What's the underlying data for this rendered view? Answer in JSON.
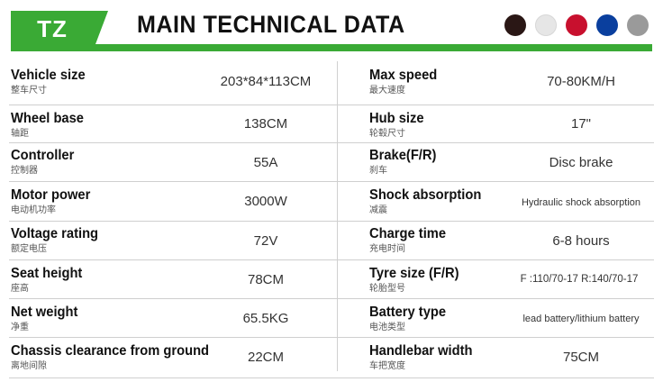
{
  "header": {
    "badge": "TZ",
    "title": "MAIN TECHNICAL DATA",
    "color_swatches": [
      "#2a1715",
      "#e6e6e6",
      "#c8102e",
      "#0a3f9e",
      "#9a9a9a"
    ],
    "accent_color": "#3aaa35"
  },
  "specs": [
    {
      "left": {
        "en": "Vehicle size",
        "cn": "整车尺寸",
        "value": "203*84*113CM"
      },
      "right": {
        "en": "Max speed",
        "cn": "最大速度",
        "value": "70-80KM/H"
      }
    },
    {
      "left": {
        "en": "Wheel base",
        "cn": "轴距",
        "value": "138CM"
      },
      "right": {
        "en": "Hub size",
        "cn": "轮毂尺寸",
        "value": "17\""
      }
    },
    {
      "left": {
        "en": "Controller",
        "cn": "控制器",
        "value": "55A"
      },
      "right": {
        "en": "Brake(F/R)",
        "cn": "刹车",
        "value": "Disc brake"
      }
    },
    {
      "left": {
        "en": "Motor power",
        "cn": "电动机功率",
        "value": "3000W"
      },
      "right": {
        "en": "Shock absorption",
        "cn": "减震",
        "value": "Hydraulic shock absorption"
      }
    },
    {
      "left": {
        "en": "Voltage rating",
        "cn": "额定电压",
        "value": "72V"
      },
      "right": {
        "en": "Charge time",
        "cn": "充电时间",
        "value": "6-8 hours"
      }
    },
    {
      "left": {
        "en": "Seat height",
        "cn": "座高",
        "value": "78CM"
      },
      "right": {
        "en": "Tyre size (F/R)",
        "cn": "轮胎型号",
        "value": "F :110/70-17 R:140/70-17"
      }
    },
    {
      "left": {
        "en": "Net weight",
        "cn": "净重",
        "value": "65.5KG"
      },
      "right": {
        "en": "Battery type",
        "cn": "电池类型",
        "value": "lead battery/lithium battery"
      }
    },
    {
      "left": {
        "en": "Chassis clearance from ground",
        "cn": "离地间隙",
        "value": "22CM"
      },
      "right": {
        "en": "Handlebar width",
        "cn": "车把宽度",
        "value": "75CM"
      }
    }
  ]
}
